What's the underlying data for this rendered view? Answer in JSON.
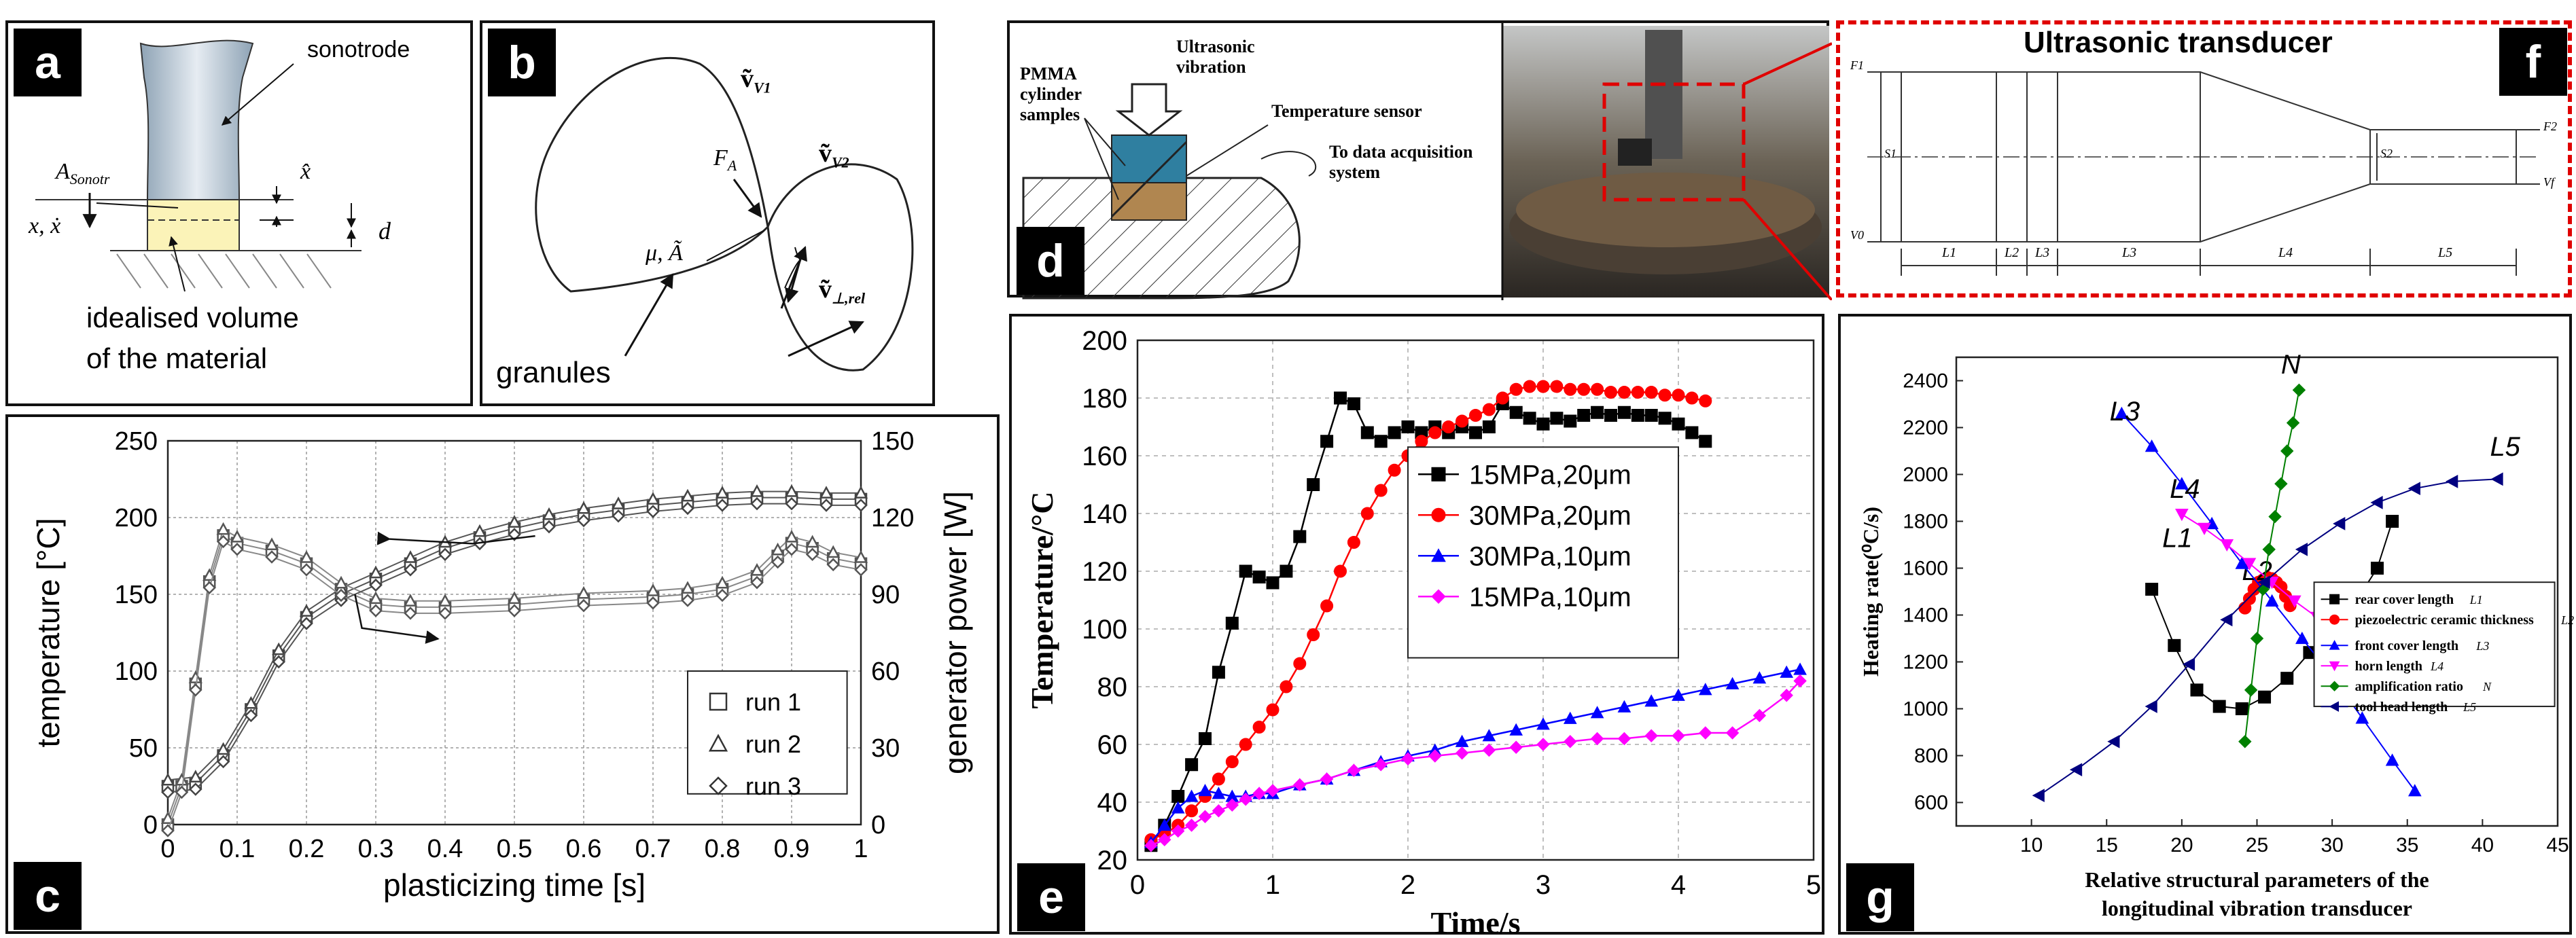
{
  "panels": {
    "a": {
      "tag": "a",
      "label_sonotrode": "sonotrode",
      "label_area": "A",
      "label_area_sub": "Sonotr",
      "label_xhat": "x̂",
      "label_x": "x, ẋ",
      "label_d": "d",
      "caption_line1": "idealised volume",
      "caption_line2": "of the material"
    },
    "b": {
      "tag": "b",
      "label_v1": "ṽ",
      "label_v1_sub": "V1",
      "label_v2": "ṽ",
      "label_v2_sub": "V2",
      "label_fa": "F",
      "label_fa_sub": "A",
      "label_mu": "μ, Ã",
      "label_vrel": "ṽ",
      "label_vrel_sub": "⊥,rel",
      "caption": "granules"
    },
    "c": {
      "tag": "c"
    },
    "d": {
      "tag": "d",
      "label_ultra_1": "Ultrasonic",
      "label_ultra_2": "vibration",
      "label_pmma_1": "PMMA",
      "label_pmma_2": "cylinder",
      "label_pmma_3": "samples",
      "label_temp": "Temperature sensor",
      "label_daq_1": "To data acquisition",
      "label_daq_2": "system"
    },
    "e": {
      "tag": "e"
    },
    "f": {
      "tag": "f",
      "title": "Ultrasonic transducer",
      "dims": [
        "L1",
        "L2",
        "L3",
        "L3",
        "L4",
        "L5"
      ],
      "left_labels": [
        "F1",
        "S1",
        "V0"
      ],
      "right_labels": [
        "F2",
        "S2",
        "Vf"
      ]
    },
    "g": {
      "tag": "g"
    }
  },
  "chart_data": [
    {
      "id": "c",
      "type": "line",
      "xlabel": "plasticizing time  [s]",
      "ylabel": "temperature  [°C]",
      "y2label": "generator power  [W]",
      "xlim": [
        0,
        1
      ],
      "ylim": [
        0,
        250
      ],
      "y2lim": [
        0,
        150
      ],
      "xticks": [
        "0",
        "0.1",
        "0.2",
        "0.3",
        "0.4",
        "0.5",
        "0.6",
        "0.7",
        "0.8",
        "0.9",
        "1"
      ],
      "yticks": [
        "0",
        "50",
        "100",
        "150",
        "200",
        "250"
      ],
      "y2ticks": [
        "0",
        "30",
        "60",
        "90",
        "120",
        "150"
      ],
      "legend": [
        "run 1",
        "run 2",
        "run 3"
      ],
      "temperature_curve": {
        "x": [
          0,
          0.04,
          0.08,
          0.12,
          0.16,
          0.2,
          0.25,
          0.3,
          0.35,
          0.4,
          0.45,
          0.5,
          0.55,
          0.6,
          0.65,
          0.7,
          0.75,
          0.8,
          0.85,
          0.9,
          0.95,
          1.0
        ],
        "y": [
          25,
          27,
          45,
          75,
          110,
          135,
          150,
          160,
          170,
          180,
          187,
          193,
          198,
          202,
          205,
          208,
          210,
          212,
          213,
          213,
          212,
          212
        ]
      },
      "power_curve": {
        "x": [
          0,
          0.02,
          0.04,
          0.06,
          0.08,
          0.1,
          0.15,
          0.2,
          0.25,
          0.3,
          0.35,
          0.4,
          0.5,
          0.6,
          0.7,
          0.75,
          0.8,
          0.85,
          0.88,
          0.9,
          0.93,
          0.96,
          1.0
        ],
        "y": [
          0,
          15,
          55,
          95,
          113,
          110,
          107,
          102,
          92,
          86,
          85,
          85,
          86,
          88,
          89,
          90,
          92,
          97,
          105,
          110,
          108,
          104,
          102
        ]
      },
      "annotations": [
        "arrow to temperature axis",
        "arrow to power axis"
      ]
    },
    {
      "id": "e",
      "type": "line",
      "xlabel": "Time/s",
      "ylabel": "Temperature/°C",
      "xlim": [
        0,
        5
      ],
      "ylim": [
        20,
        200
      ],
      "xticks": [
        "0",
        "1",
        "2",
        "3",
        "4",
        "5"
      ],
      "yticks": [
        "20",
        "40",
        "60",
        "80",
        "100",
        "120",
        "140",
        "160",
        "180",
        "200"
      ],
      "series": [
        {
          "name": "15MPa,20μm",
          "color": "#000000",
          "marker": "square",
          "x": [
            0.1,
            0.2,
            0.3,
            0.4,
            0.5,
            0.6,
            0.7,
            0.8,
            0.9,
            1.0,
            1.1,
            1.2,
            1.3,
            1.4,
            1.5,
            1.6,
            1.7,
            1.8,
            1.9,
            2.0,
            2.1,
            2.2,
            2.3,
            2.4,
            2.5,
            2.6,
            2.7,
            2.8,
            2.9,
            3.0,
            3.1,
            3.2,
            3.3,
            3.4,
            3.5,
            3.6,
            3.7,
            3.8,
            3.9,
            4.0,
            4.1,
            4.2
          ],
          "y": [
            25,
            32,
            42,
            53,
            62,
            85,
            102,
            120,
            118,
            116,
            120,
            132,
            150,
            165,
            180,
            178,
            168,
            165,
            168,
            170,
            168,
            170,
            168,
            170,
            168,
            170,
            178,
            175,
            173,
            171,
            173,
            172,
            174,
            175,
            174,
            175,
            174,
            174,
            173,
            171,
            168,
            165
          ]
        },
        {
          "name": "30MPa,20μm",
          "color": "#ff0000",
          "marker": "circle",
          "x": [
            0.1,
            0.2,
            0.3,
            0.4,
            0.5,
            0.6,
            0.7,
            0.8,
            0.9,
            1.0,
            1.1,
            1.2,
            1.3,
            1.4,
            1.5,
            1.6,
            1.7,
            1.8,
            1.9,
            2.0,
            2.1,
            2.2,
            2.3,
            2.4,
            2.5,
            2.6,
            2.7,
            2.8,
            2.9,
            3.0,
            3.1,
            3.2,
            3.3,
            3.4,
            3.5,
            3.6,
            3.7,
            3.8,
            3.9,
            4.0,
            4.1,
            4.2
          ],
          "y": [
            27,
            29,
            32,
            37,
            42,
            48,
            54,
            60,
            66,
            72,
            80,
            88,
            98,
            108,
            120,
            130,
            140,
            148,
            155,
            160,
            165,
            168,
            170,
            172,
            174,
            176,
            180,
            183,
            184,
            184,
            184,
            183,
            183,
            183,
            182,
            182,
            182,
            182,
            181,
            181,
            180,
            179
          ]
        },
        {
          "name": "30MPa,10μm",
          "color": "#0000ff",
          "marker": "triangle",
          "x": [
            0.1,
            0.2,
            0.3,
            0.4,
            0.5,
            0.6,
            0.7,
            0.8,
            0.9,
            1.0,
            1.2,
            1.4,
            1.6,
            1.8,
            2.0,
            2.2,
            2.4,
            2.6,
            2.8,
            3.0,
            3.2,
            3.4,
            3.6,
            3.8,
            4.0,
            4.2,
            4.4,
            4.6,
            4.8,
            4.9
          ],
          "y": [
            26,
            32,
            38,
            42,
            44,
            43,
            42,
            42,
            43,
            43,
            46,
            48,
            51,
            54,
            56,
            58,
            61,
            63,
            65,
            67,
            69,
            71,
            73,
            75,
            77,
            79,
            81,
            83,
            85,
            86
          ]
        },
        {
          "name": "15MPa,10μm",
          "color": "#ff00ff",
          "marker": "diamond",
          "x": [
            0.1,
            0.2,
            0.3,
            0.4,
            0.5,
            0.6,
            0.7,
            0.8,
            0.9,
            1.0,
            1.2,
            1.4,
            1.6,
            1.8,
            2.0,
            2.2,
            2.4,
            2.6,
            2.8,
            3.0,
            3.2,
            3.4,
            3.6,
            3.8,
            4.0,
            4.2,
            4.4,
            4.6,
            4.8,
            4.9
          ],
          "y": [
            25,
            27,
            30,
            32,
            35,
            37,
            39,
            41,
            43,
            44,
            46,
            48,
            51,
            53,
            55,
            56,
            57,
            58,
            59,
            60,
            61,
            62,
            62,
            63,
            63,
            64,
            64,
            70,
            77,
            82
          ]
        }
      ]
    },
    {
      "id": "g",
      "type": "line",
      "xlabel_line1": "Relative structural parameters of the",
      "xlabel_line2": "longitudinal vibration transducer",
      "ylabel": "Heating rate(⁰C/s)",
      "xlim": [
        5,
        45
      ],
      "ylim": [
        500,
        2500
      ],
      "xticks": [
        "10",
        "15",
        "20",
        "25",
        "30",
        "35",
        "40",
        "45"
      ],
      "yticks": [
        "600",
        "800",
        "1000",
        "1200",
        "1400",
        "1600",
        "1800",
        "2000",
        "2200",
        "2400"
      ],
      "series": [
        {
          "name": "rear cover length",
          "sym": "L1",
          "label": "L1",
          "color": "#000000",
          "marker": "square",
          "x": [
            18,
            19.5,
            21,
            22.5,
            24,
            25.5,
            27,
            28.5,
            30,
            31.5,
            33,
            34
          ],
          "y": [
            1510,
            1270,
            1080,
            1010,
            1000,
            1050,
            1130,
            1240,
            1340,
            1450,
            1600,
            1800
          ]
        },
        {
          "name": "piezoelectric ceramic thickness",
          "sym": "L2",
          "label": "L2",
          "color": "#ff0000",
          "marker": "circle",
          "x": [
            24.2,
            24.5,
            24.8,
            25.1,
            25.4,
            25.7,
            26.0,
            26.3,
            26.6,
            26.9,
            27.2
          ],
          "y": [
            1430,
            1470,
            1510,
            1540,
            1550,
            1560,
            1555,
            1540,
            1520,
            1480,
            1440
          ]
        },
        {
          "name": "front cover length",
          "sym": "L3",
          "label": "L3",
          "color": "#0000ff",
          "marker": "triangle",
          "x": [
            16,
            18,
            20,
            22,
            24,
            26,
            28,
            30,
            32,
            34,
            35.5
          ],
          "y": [
            2260,
            2120,
            1960,
            1790,
            1620,
            1460,
            1300,
            1140,
            960,
            780,
            650
          ]
        },
        {
          "name": "horn length",
          "sym": "L4",
          "label": "L4",
          "color": "#ff00ff",
          "marker": "triangle-down",
          "x": [
            20,
            21.5,
            23,
            24.5,
            26,
            27.5,
            29,
            30.5,
            31.5
          ],
          "y": [
            1830,
            1770,
            1700,
            1620,
            1540,
            1460,
            1390,
            1340,
            1300
          ]
        },
        {
          "name": "amplification ratio",
          "sym": "N",
          "label": "N",
          "color": "#008000",
          "marker": "diamond",
          "x": [
            24.2,
            24.6,
            25.0,
            25.4,
            25.8,
            26.2,
            26.6,
            27.0,
            27.4,
            27.8
          ],
          "y": [
            860,
            1080,
            1300,
            1510,
            1680,
            1820,
            1960,
            2100,
            2220,
            2360
          ]
        },
        {
          "name": "tool head length",
          "sym": "L5",
          "label": "L5",
          "color": "#000080",
          "marker": "triangle-left",
          "x": [
            10.5,
            13,
            15.5,
            18,
            20.5,
            23,
            25.5,
            28,
            30.5,
            33,
            35.5,
            38,
            41
          ],
          "y": [
            630,
            740,
            860,
            1010,
            1190,
            1380,
            1540,
            1680,
            1790,
            1880,
            1940,
            1970,
            1980
          ]
        }
      ]
    }
  ]
}
